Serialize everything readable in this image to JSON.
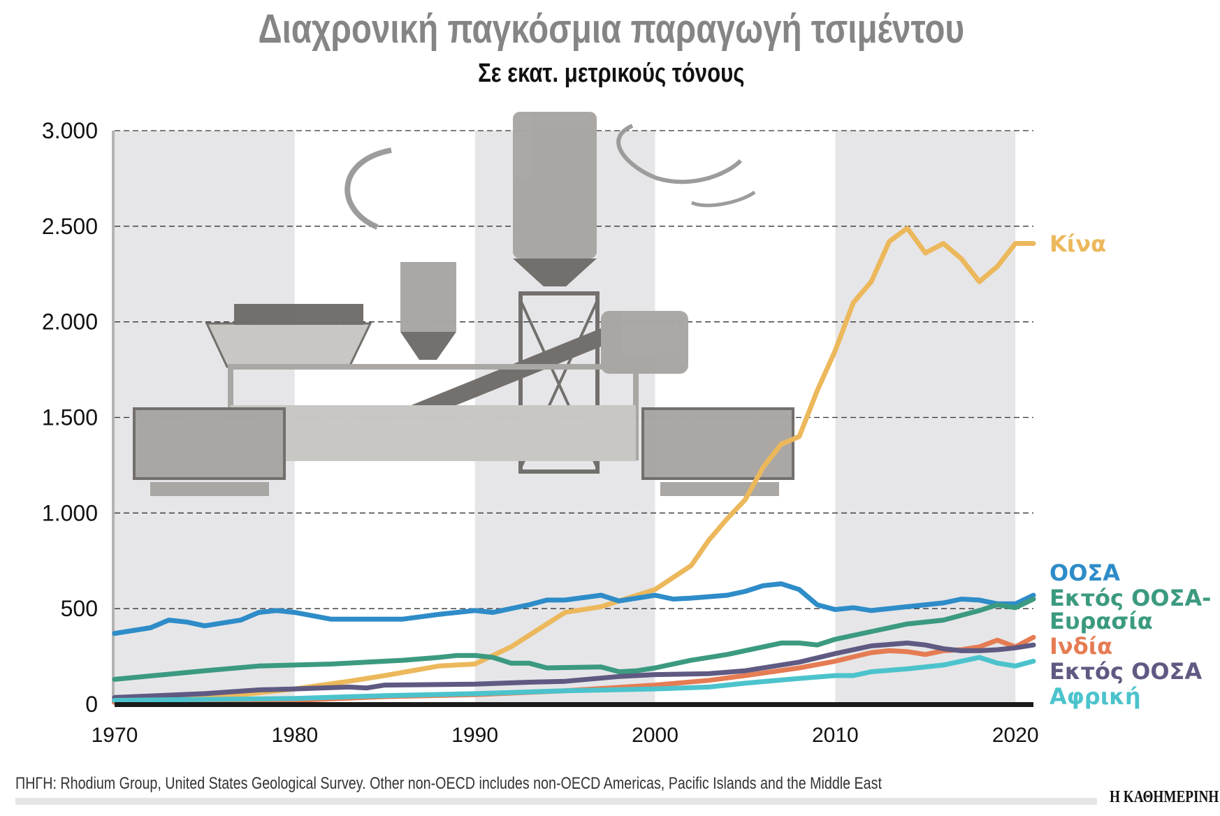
{
  "chart_data": {
    "type": "line",
    "title": "Διαχρονική παγκόσμια παραγωγή τσιμέντου",
    "subtitle": "Σε εκατ. μετρικούς τόνους",
    "xlabel": "",
    "ylabel": "",
    "xlim": [
      1970,
      2021
    ],
    "ylim": [
      0,
      3000
    ],
    "yticks": [
      0,
      500,
      1000,
      1500,
      2000,
      2500,
      3000
    ],
    "ytick_labels": [
      "0",
      "500",
      "1.000",
      "1.500",
      "2.000",
      "2.500",
      "3.000"
    ],
    "xticks": [
      1970,
      1980,
      1990,
      2000,
      2010,
      2020
    ],
    "xtick_labels": [
      "1970",
      "1980",
      "1990",
      "2000",
      "2010",
      "2020"
    ],
    "grid": "horizontal dashed",
    "shaded_decades": [
      [
        1970,
        1980
      ],
      [
        1990,
        2000
      ],
      [
        2010,
        2020
      ]
    ],
    "legend": "right, labels at line ends",
    "series": [
      {
        "name": "Κίνα",
        "color": "#ecb85c",
        "x": [
          1970,
          1975,
          1980,
          1983,
          1985,
          1988,
          1990,
          1992,
          1995,
          1997,
          1999,
          2000,
          2002,
          2003,
          2004,
          2005,
          2006,
          2007,
          2008,
          2009,
          2010,
          2011,
          2012,
          2013,
          2014,
          2015,
          2016,
          2017,
          2018,
          2019,
          2020,
          2021
        ],
        "y": [
          10,
          30,
          80,
          120,
          150,
          200,
          210,
          300,
          480,
          510,
          570,
          600,
          725,
          860,
          970,
          1070,
          1240,
          1360,
          1400,
          1640,
          1850,
          2100,
          2210,
          2420,
          2490,
          2360,
          2410,
          2330,
          2210,
          2290,
          2410,
          2410
        ]
      },
      {
        "name": "ΟΟΣΑ",
        "color": "#2e8cc8",
        "x": [
          1970,
          1972,
          1973,
          1974,
          1975,
          1977,
          1978,
          1979,
          1980,
          1982,
          1986,
          1988,
          1990,
          1991,
          1993,
          1994,
          1995,
          1997,
          1998,
          2000,
          2001,
          2002,
          2004,
          2005,
          2006,
          2007,
          2008,
          2009,
          2010,
          2011,
          2012,
          2014,
          2016,
          2017,
          2018,
          2019,
          2020,
          2021
        ],
        "y": [
          370,
          400,
          440,
          430,
          410,
          440,
          480,
          490,
          480,
          445,
          445,
          470,
          490,
          480,
          520,
          545,
          545,
          570,
          540,
          570,
          550,
          555,
          570,
          590,
          620,
          630,
          600,
          520,
          495,
          505,
          490,
          510,
          530,
          550,
          545,
          525,
          525,
          570
        ]
      },
      {
        "name": "Εκτός ΟΟΣΑ-Ευρασία",
        "color": "#3b9a80",
        "x": [
          1970,
          1975,
          1978,
          1980,
          1982,
          1984,
          1986,
          1988,
          1989,
          1990,
          1991,
          1992,
          1993,
          1994,
          1997,
          1998,
          1999,
          2000,
          2002,
          2004,
          2006,
          2007,
          2008,
          2009,
          2010,
          2012,
          2014,
          2016,
          2018,
          2019,
          2020,
          2021
        ],
        "y": [
          130,
          175,
          200,
          205,
          210,
          220,
          230,
          245,
          255,
          255,
          245,
          215,
          215,
          190,
          195,
          170,
          175,
          190,
          230,
          260,
          300,
          320,
          320,
          310,
          340,
          380,
          420,
          440,
          490,
          520,
          505,
          550
        ]
      },
      {
        "name": "Ινδία",
        "color": "#e57c54",
        "x": [
          1970,
          1980,
          1985,
          1990,
          1995,
          2000,
          2003,
          2005,
          2008,
          2010,
          2012,
          2013,
          2014,
          2015,
          2016,
          2017,
          2018,
          2019,
          2020,
          2021
        ],
        "y": [
          10,
          20,
          40,
          50,
          70,
          100,
          125,
          150,
          190,
          225,
          270,
          280,
          275,
          260,
          280,
          285,
          300,
          335,
          300,
          350
        ]
      },
      {
        "name": "Εκτός ΟΟΣΑ",
        "color": "#5e5a82",
        "x": [
          1970,
          1975,
          1978,
          1980,
          1983,
          1984,
          1985,
          1990,
          1993,
          1995,
          1998,
          2000,
          2003,
          2005,
          2008,
          2010,
          2012,
          2014,
          2015,
          2016,
          2017,
          2018,
          2019,
          2020,
          2021
        ],
        "y": [
          35,
          55,
          75,
          80,
          90,
          85,
          100,
          105,
          115,
          120,
          145,
          155,
          160,
          175,
          220,
          265,
          305,
          320,
          310,
          290,
          280,
          280,
          285,
          295,
          310
        ]
      },
      {
        "name": "Αφρική",
        "color": "#4cc3cc",
        "x": [
          1970,
          1980,
          1985,
          1990,
          1995,
          2000,
          2003,
          2005,
          2008,
          2010,
          2011,
          2012,
          2014,
          2016,
          2018,
          2019,
          2020,
          2021
        ],
        "y": [
          20,
          30,
          45,
          55,
          70,
          80,
          90,
          110,
          135,
          150,
          150,
          170,
          185,
          205,
          245,
          215,
          200,
          225
        ]
      }
    ],
    "legend_labels": [
      {
        "text": "Κίνα",
        "color": "#ecb85c"
      },
      {
        "text": "ΟΟΣΑ",
        "color": "#2e8cc8"
      },
      {
        "text": "Εκτός ΟΟΣΑ-",
        "color": "#3b9a80"
      },
      {
        "text": "Ευρασία",
        "color": "#3b9a80"
      },
      {
        "text": "Ινδία",
        "color": "#e57c54"
      },
      {
        "text": "Εκτός ΟΟΣΑ",
        "color": "#5e5a82"
      },
      {
        "text": "Αφρική",
        "color": "#4cc3cc"
      }
    ]
  },
  "footer": {
    "source": "ΠΗΓΗ: Rhodium Group, United States Geological Survey. Other non-OECD includes non-OECD Americas, Pacific Islands and the Middle East",
    "logo": "Η ΚΑΘΗΜΕΡΙΝΗ"
  }
}
